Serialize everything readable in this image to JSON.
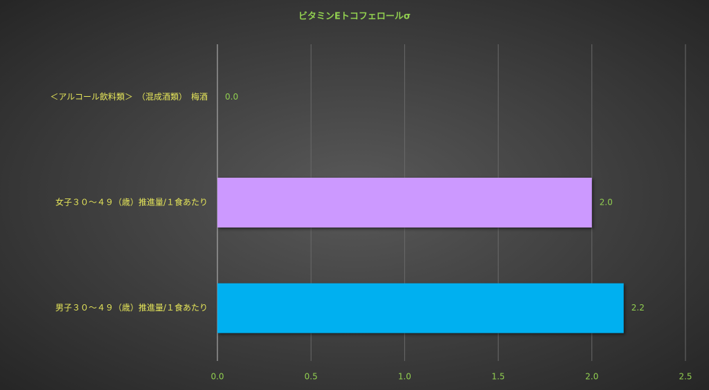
{
  "chart_data": {
    "type": "hbar",
    "title": "ビタミンEトコフェロールσ",
    "categories": [
      "＜アルコール飲料類＞　（混成酒類）　梅酒",
      "女子３０～４９（歳）推進量/１食あたり",
      "男子３０～４９（歳）推進量/１食あたり"
    ],
    "values": [
      0,
      2.0,
      2.17
    ],
    "value_labels": [
      "0.0",
      "2.0",
      "2.2"
    ],
    "colors": [
      "#cc99ff",
      "#cc99ff",
      "#00b0f0"
    ],
    "xlim": [
      0,
      2.5
    ],
    "xticks": [
      {
        "value": 0,
        "label": "0.0"
      },
      0.5,
      {
        "value": 1,
        "label": "1.0"
      },
      1.5,
      {
        "value": 2,
        "label": "2.0"
      },
      2.5
    ],
    "grid": true
  }
}
